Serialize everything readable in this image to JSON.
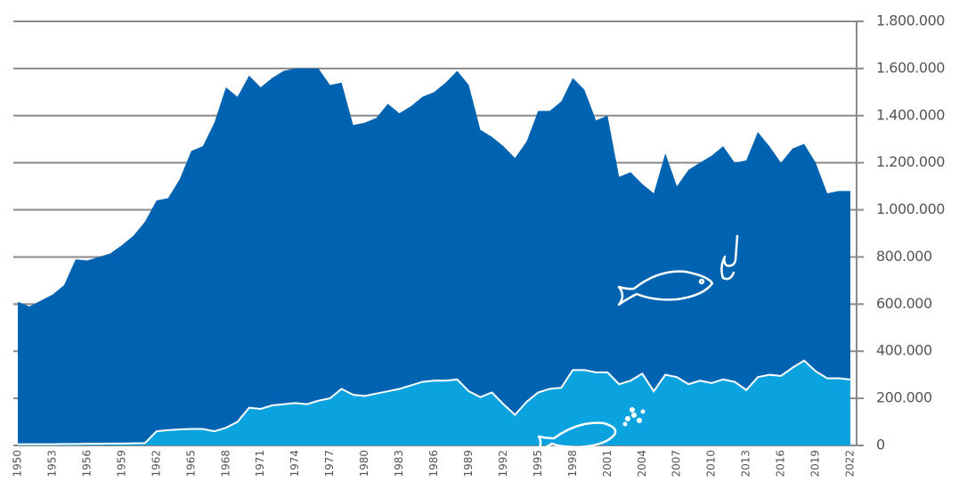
{
  "chart_data": {
    "type": "area",
    "categories": [
      "1950",
      null,
      null,
      "1953",
      null,
      null,
      "1956",
      null,
      null,
      "1959",
      null,
      null,
      "1962",
      null,
      null,
      "1965",
      null,
      null,
      "1968",
      null,
      null,
      "1971",
      null,
      null,
      "1974",
      null,
      null,
      "1977",
      null,
      null,
      "1980",
      null,
      null,
      "1983",
      null,
      null,
      "1986",
      null,
      null,
      "1989",
      null,
      null,
      "1992",
      null,
      null,
      "1995",
      null,
      null,
      "1998",
      null,
      null,
      "2001",
      null,
      null,
      "2004",
      null,
      null,
      "2007",
      null,
      null,
      "2010",
      null,
      null,
      "2013",
      null,
      null,
      "2016",
      null,
      null,
      "2019",
      null,
      null,
      "2022"
    ],
    "series": [
      {
        "color": "#0063b1",
        "values": [
          610000,
          590000,
          615000,
          640000,
          680000,
          790000,
          785000,
          800000,
          815000,
          850000,
          890000,
          950000,
          1040000,
          1050000,
          1130000,
          1250000,
          1270000,
          1370000,
          1520000,
          1480000,
          1570000,
          1520000,
          1560000,
          1590000,
          1600000,
          1600000,
          1600000,
          1530000,
          1540000,
          1360000,
          1370000,
          1390000,
          1450000,
          1410000,
          1440000,
          1480000,
          1500000,
          1540000,
          1590000,
          1530000,
          1340000,
          1310000,
          1270000,
          1220000,
          1290000,
          1420000,
          1420000,
          1460000,
          1560000,
          1510000,
          1380000,
          1400000,
          1140000,
          1160000,
          1110000,
          1070000,
          1240000,
          1100000,
          1170000,
          1200000,
          1230000,
          1270000,
          1200000,
          1210000,
          1330000,
          1270000,
          1200000,
          1260000,
          1280000,
          1200000,
          1070000,
          1080000,
          1080000
        ]
      },
      {
        "color": "#0aa3e0",
        "values": [
          5000,
          5000,
          5000,
          5000,
          6000,
          6000,
          7000,
          7000,
          8000,
          8000,
          9000,
          10000,
          60000,
          65000,
          68000,
          70000,
          70000,
          60000,
          75000,
          100000,
          160000,
          155000,
          170000,
          175000,
          180000,
          175000,
          190000,
          200000,
          240000,
          215000,
          210000,
          220000,
          230000,
          240000,
          255000,
          270000,
          275000,
          275000,
          280000,
          230000,
          205000,
          225000,
          175000,
          130000,
          185000,
          225000,
          240000,
          245000,
          320000,
          320000,
          310000,
          310000,
          260000,
          275000,
          305000,
          230000,
          300000,
          290000,
          260000,
          275000,
          265000,
          280000,
          270000,
          235000,
          290000,
          300000,
          295000,
          330000,
          360000,
          315000,
          285000,
          285000,
          280000
        ]
      }
    ],
    "ylim": [
      0,
      1800000
    ],
    "yticks": [
      0,
      {
        "value": 200000,
        "label": "200.000"
      },
      {
        "value": 400000,
        "label": "400.000"
      },
      {
        "value": 600000,
        "label": "600.000"
      },
      {
        "value": 800000,
        "label": "800.000"
      },
      {
        "value": 1000000,
        "label": "1.000.000"
      },
      {
        "value": 1200000,
        "label": "1.200.000"
      },
      {
        "value": 1400000,
        "label": "1.400.000"
      },
      {
        "value": 1600000,
        "label": "1.600.000"
      },
      {
        "value": 1800000,
        "label": "1.800.000"
      }
    ],
    "grid": true,
    "axis_side": "right"
  }
}
